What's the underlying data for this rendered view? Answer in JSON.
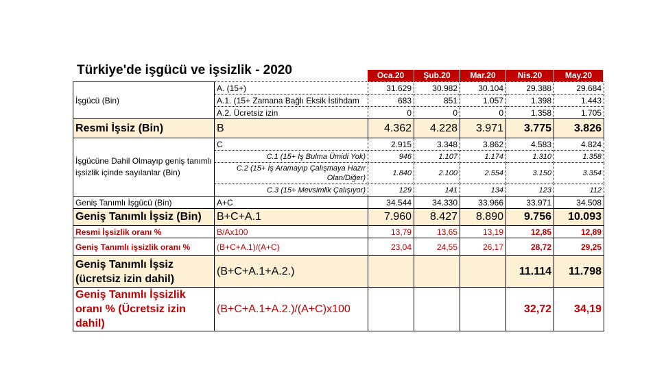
{
  "title": "Türkiye'de işgücü ve işsizlik - 2020",
  "columns": [
    "Oca.20",
    "Şub.20",
    "Mar.20",
    "Nis.20",
    "May.20"
  ],
  "rows": {
    "isgucu_label": "İşgücü (Bin)",
    "a": {
      "def": "A. (15+)",
      "v": [
        "31.629",
        "30.982",
        "30.104",
        "29.388",
        "29.684"
      ]
    },
    "a1": {
      "def": "A.1. (15+ Zamana Bağlı Eksik İstihdam",
      "v": [
        "683",
        "851",
        "1.057",
        "1.398",
        "1.443"
      ]
    },
    "a2": {
      "def": "A.2. Ücretsiz izin",
      "v": [
        "0",
        "0",
        "0",
        "1.358",
        "1.705"
      ]
    },
    "resmi": {
      "label": "Resmi İşsiz (Bin)",
      "def": "B",
      "v": [
        "4.362",
        "4.228",
        "3.971",
        "3.775",
        "3.826"
      ]
    },
    "dahil_label": "İşgücüne Dahil Olmayıp geniş tanımlı işsizlik içinde sayılanlar (Bin)",
    "c": {
      "def": "C",
      "v": [
        "2.915",
        "3.348",
        "3.862",
        "4.583",
        "4.824"
      ]
    },
    "c1": {
      "def": "C.1 (15+ İş Bulma Ümidi Yok)",
      "v": [
        "946",
        "1.107",
        "1.174",
        "1.310",
        "1.358"
      ]
    },
    "c2": {
      "def": "C.2 (15+ İş Aramayıp Çalışmaya Hazır Olan/Diğer)",
      "v": [
        "1.840",
        "2.100",
        "2.554",
        "3.150",
        "3.354"
      ]
    },
    "c3": {
      "def": "C.3 (15+ Mevsimlik Çalışıyor)",
      "v": [
        "129",
        "141",
        "134",
        "123",
        "112"
      ]
    },
    "genis_isgucu": {
      "label": "Geniş Tanımlı İşgücü (Bin)",
      "def": "A+C",
      "v": [
        "34.544",
        "34.330",
        "33.966",
        "33.971",
        "34.508"
      ]
    },
    "genis_issiz": {
      "label": "Geniş Tanımlı İşsiz (Bin)",
      "def": "B+C+A.1",
      "v": [
        "7.960",
        "8.427",
        "8.890",
        "9.756",
        "10.093"
      ]
    },
    "resmi_oran": {
      "label": "Resmi İşsizlik oranı %",
      "def": "B/Ax100",
      "v": [
        "13,79",
        "13,65",
        "13,19",
        "12,85",
        "12,89"
      ]
    },
    "genis_oran": {
      "label": "Geniş Tanımlı işsizlik oranı %",
      "def": "(B+C+A.1)/(A+C)",
      "v": [
        "23,04",
        "24,55",
        "26,17",
        "28,72",
        "29,25"
      ]
    },
    "genis_issiz_ucretsiz": {
      "label": "Geniş Tanımlı İşsiz (ücretsiz izin dahil)",
      "def": "(B+C+A.1+A.2.)",
      "v": [
        "",
        "",
        "",
        "11.114",
        "11.798"
      ]
    },
    "genis_oran_ucretsiz": {
      "label": "Geniş Tanımlı İşsizlik oranı % (Ücretsiz izin dahil)",
      "def": "(B+C+A.1+A.2.)/(A+C)x100",
      "v": [
        "",
        "",
        "",
        "32,72",
        "34,19"
      ]
    }
  }
}
